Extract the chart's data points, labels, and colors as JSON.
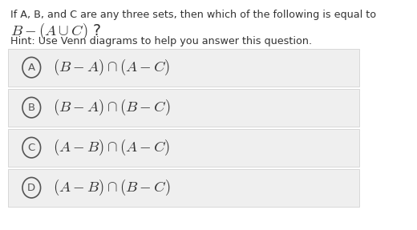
{
  "bg_color": "#ffffff",
  "question_line1": "If A, B, and C are any three sets, then which of the following is equal to",
  "question_line2": "$B - (A \\cup C)$ ?",
  "hint_line": "Hint: Use Venn diagrams to help you answer this question.",
  "options": [
    {
      "label": "A",
      "text": "$(B - A) \\cap (A - C)$"
    },
    {
      "label": "B",
      "text": "$(B - A) \\cap (B - C)$"
    },
    {
      "label": "C",
      "text": "$(A - B) \\cap (A - C)$"
    },
    {
      "label": "D",
      "text": "$(A - B) \\cap (B - C)$"
    }
  ],
  "option_bg": "#efefef",
  "option_border": "#cccccc",
  "text_color": "#333333",
  "circle_color": "#555555",
  "q1_fontsize": 9.2,
  "q2_fontsize": 13.5,
  "hint_fontsize": 9.2,
  "option_fontsize": 13.5,
  "label_fontsize": 9.5
}
